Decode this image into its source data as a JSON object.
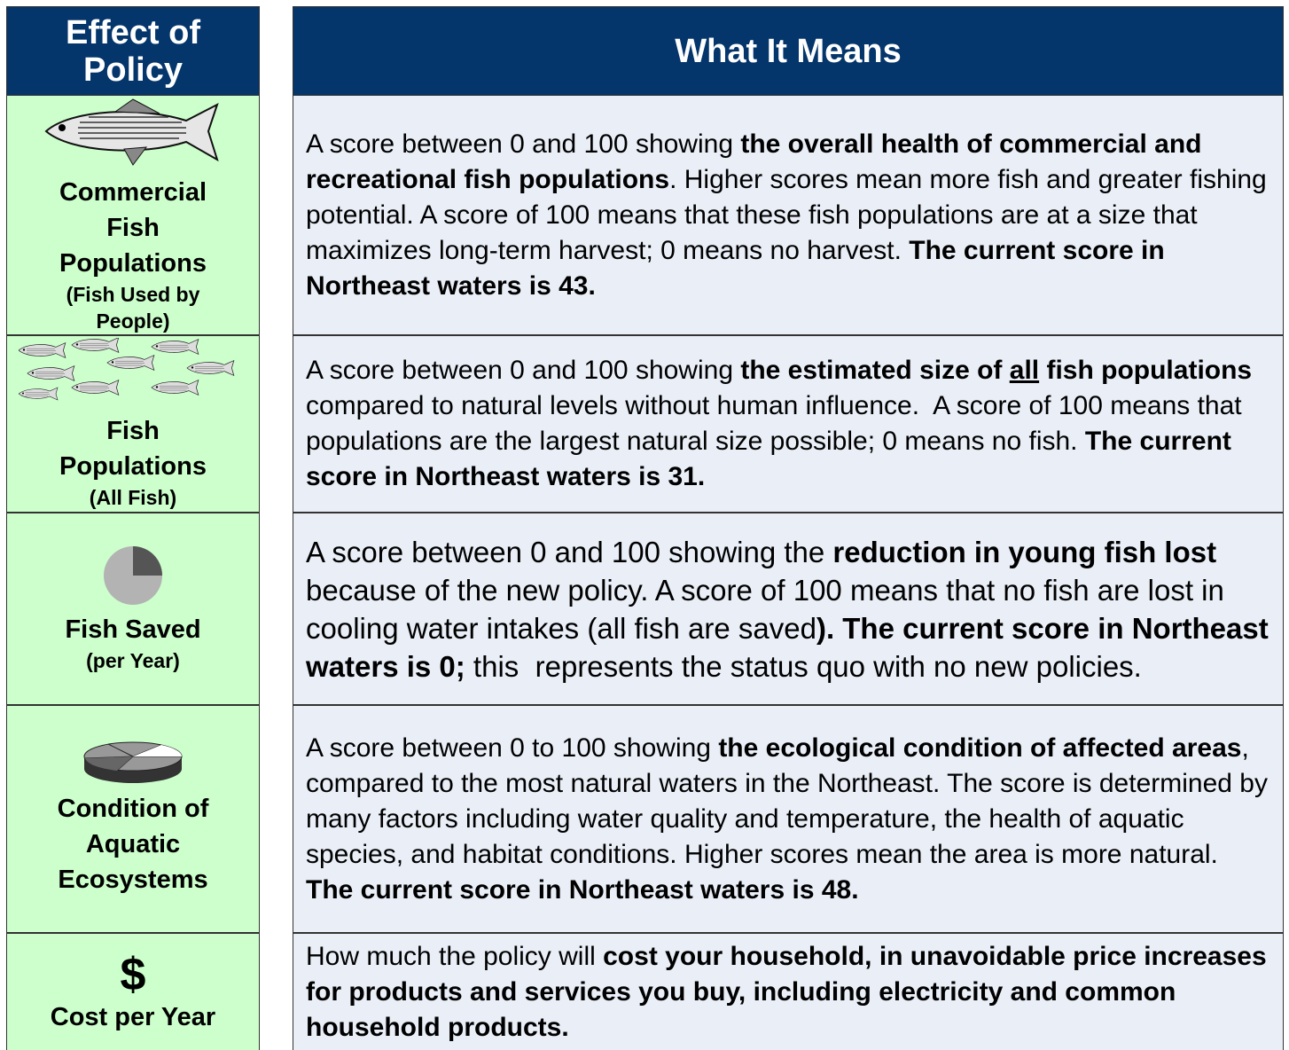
{
  "header": {
    "effect": "Effect of Policy",
    "meaning": "What It Means"
  },
  "rows": [
    {
      "label": "Commercial Fish Populations",
      "sublabel": "(Fish Used by People)",
      "description": [
        {
          "text": "A score between 0 and 100 showing "
        },
        {
          "text": "the overall health of commercial and recreational fish populations",
          "bold": true
        },
        {
          "text": ". Higher scores mean more fish and greater fishing potential. A score of 100 means that these fish populations are at a size that maximizes long-term harvest; 0 means no harvest. "
        },
        {
          "text": "The current score in Northeast waters is 43.",
          "bold": true
        }
      ]
    },
    {
      "label": "Fish Populations",
      "sublabel": "(All Fish)",
      "description": [
        {
          "text": "A score between 0 and 100 showing "
        },
        {
          "text": "the estimated size of ",
          "bold": true
        },
        {
          "text": "all",
          "bold": true,
          "underline": true
        },
        {
          "text": " fish populations",
          "bold": true
        },
        {
          "text": " compared to natural levels without human influence.  A score of 100 means that populations are the largest natural size possible; 0 means no fish. "
        },
        {
          "text": "The current score in Northeast waters is 31.",
          "bold": true
        }
      ]
    },
    {
      "label": "Fish Saved",
      "sublabel": "(per Year)",
      "description": [
        {
          "text": "A score between 0 and 100 showing the "
        },
        {
          "text": "reduction in young fish lost",
          "bold": true
        },
        {
          "text": " because of the new policy. A score of 100 means that no fish are lost in cooling water intakes (all fish are saved"
        },
        {
          "text": "). The current score in Northeast waters is 0;",
          "bold": true
        },
        {
          "text": " this  represents the status quo with no new policies."
        }
      ]
    },
    {
      "label": "Condition of Aquatic Ecosystems",
      "description": [
        {
          "text": "A score between 0 to 100 showing "
        },
        {
          "text": "the ecological condition of affected areas",
          "bold": true
        },
        {
          "text": ", compared to the most natural waters in the Northeast. The score is determined by many factors including water quality and temperature, the health of aquatic species, and habitat conditions. Higher scores mean the area is more natural. "
        },
        {
          "text": "The current score in Northeast waters is 48.",
          "bold": true
        }
      ]
    },
    {
      "label": "Cost per Year",
      "icon_text": "$",
      "description": [
        {
          "text": "How much the policy will "
        },
        {
          "text": "cost your household, in unavoidable price increases for products and services you buy, including electricity and common household products.",
          "bold": true
        }
      ]
    }
  ]
}
